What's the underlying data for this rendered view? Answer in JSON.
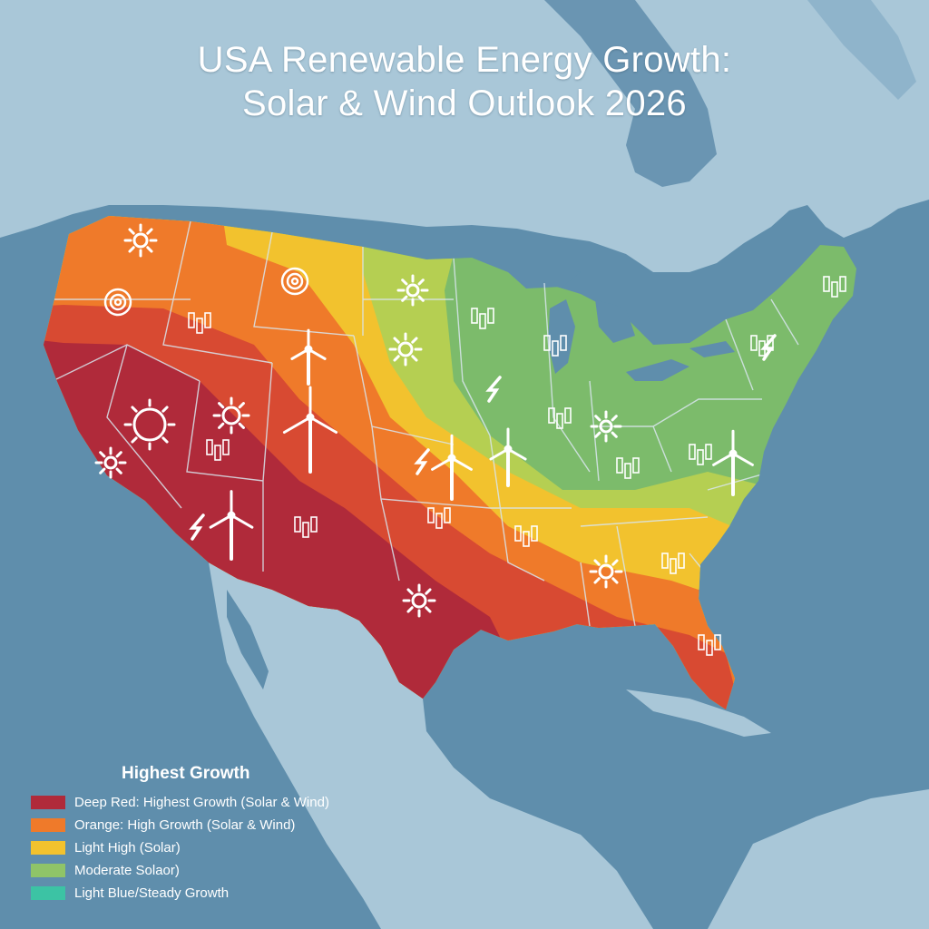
{
  "title": {
    "line1": "USA Renewable Energy Growth:",
    "line2": "Solar & Wind Outlook 2026"
  },
  "legend": {
    "title": "Highest Growth",
    "items": [
      {
        "label": "Deep Red: Highest Growth (Solar & Wind)",
        "color": "#b02a3a"
      },
      {
        "label": "Orange: High Growth (Solar & Wind)",
        "color": "#ef7a2a"
      },
      {
        "label": "Light High (Solar)",
        "color": "#f2c22e"
      },
      {
        "label": "Moderate Solaor)",
        "color": "#8fc468"
      },
      {
        "label": "Light Blue/Steady Growth",
        "color": "#3cc3a4"
      }
    ]
  },
  "colors": {
    "ocean": "#5f8eac",
    "land": "#a9c7d8",
    "deep_red": "#b02a3a",
    "red": "#d84a32",
    "orange": "#ef7a2a",
    "yellow": "#f2c22e",
    "green_yellow": "#b5cf52",
    "green": "#8fc468",
    "light_green": "#7cbb6b",
    "border": "#d9e6ee"
  },
  "icons": [
    "sun-icon",
    "wind-turbine-icon",
    "lightning-icon",
    "solar-panel-icon",
    "spiral-icon"
  ]
}
